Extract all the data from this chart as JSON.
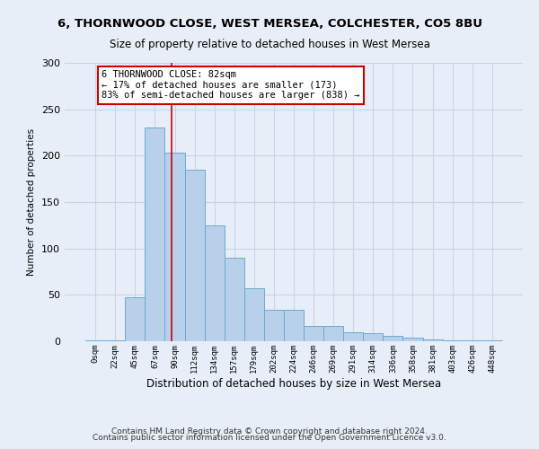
{
  "title_line1": "6, THORNWOOD CLOSE, WEST MERSEA, COLCHESTER, CO5 8BU",
  "title_line2": "Size of property relative to detached houses in West Mersea",
  "xlabel": "Distribution of detached houses by size in West Mersea",
  "ylabel": "Number of detached properties",
  "footnote1": "Contains HM Land Registry data © Crown copyright and database right 2024.",
  "footnote2": "Contains public sector information licensed under the Open Government Licence v3.0.",
  "bar_labels": [
    "0sqm",
    "22sqm",
    "45sqm",
    "67sqm",
    "90sqm",
    "112sqm",
    "134sqm",
    "157sqm",
    "179sqm",
    "202sqm",
    "224sqm",
    "246sqm",
    "269sqm",
    "291sqm",
    "314sqm",
    "336sqm",
    "358sqm",
    "381sqm",
    "403sqm",
    "426sqm",
    "448sqm"
  ],
  "bar_values": [
    1,
    1,
    47,
    230,
    203,
    185,
    125,
    90,
    57,
    34,
    34,
    16,
    16,
    10,
    9,
    6,
    4,
    2,
    1,
    1,
    1
  ],
  "bar_color": "#b8d0ea",
  "bar_edge_color": "#6aaad4",
  "grid_color": "#c8d4e8",
  "background_color": "#e8eef8",
  "annotation_box_color": "#ffffff",
  "annotation_border_color": "#cc0000",
  "redline_x": 3.82,
  "redline_color": "#cc0000",
  "annotation_text_line1": "6 THORNWOOD CLOSE: 82sqm",
  "annotation_text_line2": "← 17% of detached houses are smaller (173)",
  "annotation_text_line3": "83% of semi-detached houses are larger (838) →",
  "ylim": [
    0,
    300
  ],
  "yticks": [
    0,
    50,
    100,
    150,
    200,
    250,
    300
  ]
}
